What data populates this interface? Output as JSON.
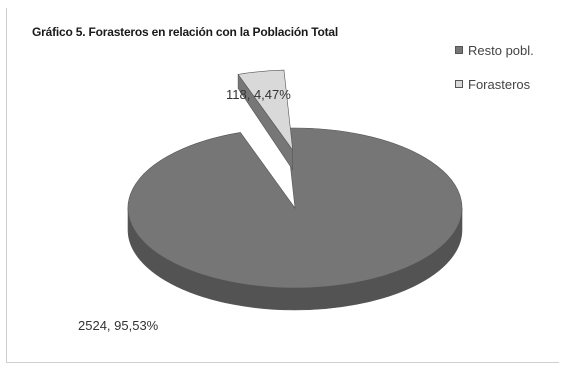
{
  "chart_data": {
    "type": "pie",
    "title": "Gráfico 5. Forasteros en relación con la Población Total",
    "three_d": true,
    "legend_position": "top-right",
    "slices": [
      {
        "name": "Resto pobl.",
        "value": 2524,
        "percent": 95.53,
        "label": "2524, 95,53%",
        "color": "#767676"
      },
      {
        "name": "Forasteros",
        "value": 118,
        "percent": 4.47,
        "label": "118, 4,47%",
        "color": "#d9d9d9"
      }
    ]
  }
}
